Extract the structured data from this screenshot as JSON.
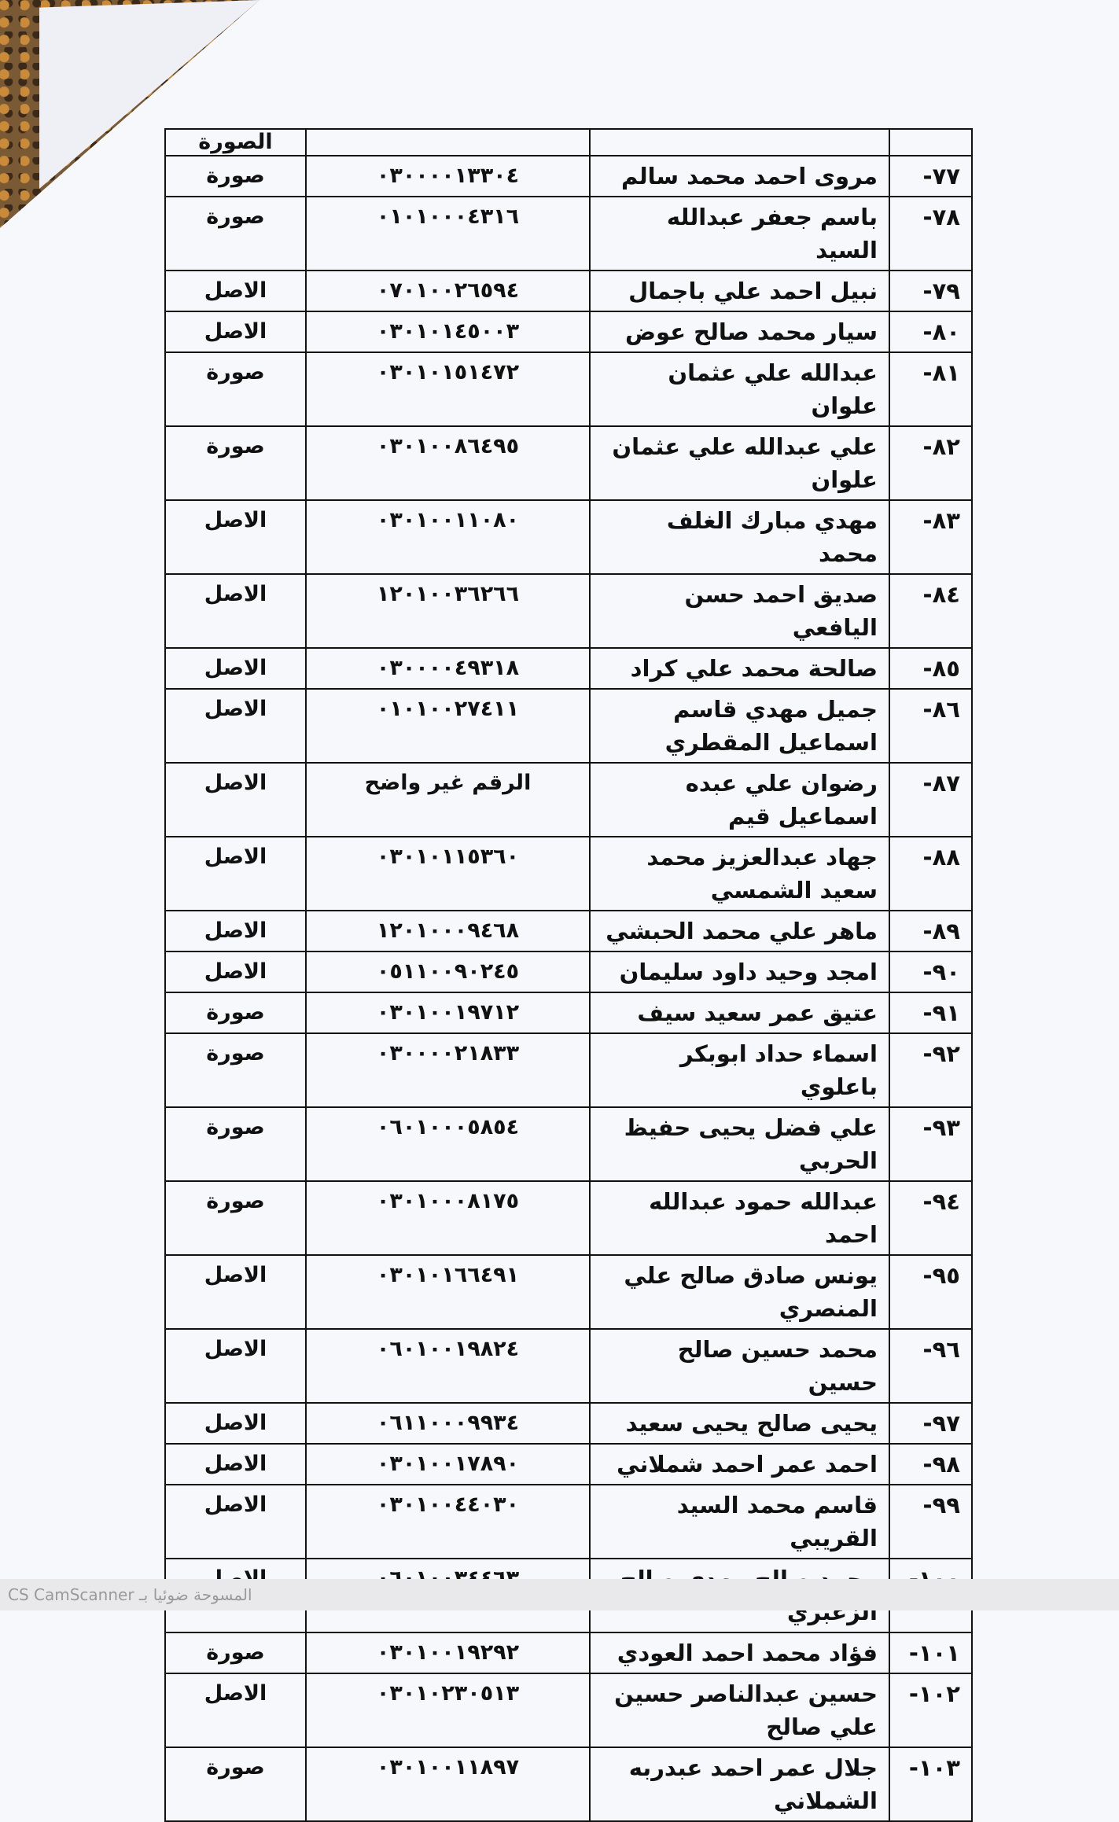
{
  "header": {
    "number": "",
    "name": "",
    "id": "",
    "status": "الصورة"
  },
  "rows": [
    {
      "n": "٧٧-",
      "name": "مروى احمد محمد سالم",
      "id": "٠٣٠٠٠٠١٣٣٠٤",
      "status": "صورة",
      "lines": 1
    },
    {
      "n": "٧٨-",
      "name": "باسم جعفر عبدالله السيد",
      "id": "٠١٠١٠٠٠٤٣١٦",
      "status": "صورة",
      "lines": 1
    },
    {
      "n": "٧٩-",
      "name": "نبيل احمد علي باجمال",
      "id": "٠٧٠١٠٠٢٦٥٩٤",
      "status": "الاصل",
      "lines": 1
    },
    {
      "n": "٨٠-",
      "name": "سيار محمد صالح عوض",
      "id": "٠٣٠١٠١٤٥٠٠٣",
      "status": "الاصل",
      "lines": 1
    },
    {
      "n": "٨١-",
      "name": "عبدالله علي عثمان علوان",
      "id": "٠٣٠١٠١٥١٤٧٢",
      "status": "صورة",
      "lines": 1
    },
    {
      "n": "٨٢-",
      "name": "علي عبدالله علي عثمان علوان",
      "id": "٠٣٠١٠٠٨٦٤٩٥",
      "status": "صورة",
      "lines": 2
    },
    {
      "n": "٨٣-",
      "name": "مهدي مبارك الغلف محمد",
      "id": "٠٣٠١٠٠١١٠٨٠",
      "status": "الاصل",
      "lines": 1
    },
    {
      "n": "٨٤-",
      "name": "صديق احمد حسن اليافعي",
      "id": "١٢٠١٠٠٣٦٢٦٦",
      "status": "الاصل",
      "lines": 1
    },
    {
      "n": "٨٥-",
      "name": "صالحة محمد علي كراد",
      "id": "٠٣٠٠٠٠٤٩٣١٨",
      "status": "الاصل",
      "lines": 1
    },
    {
      "n": "٨٦-",
      "name": "جميل مهدي قاسم اسماعيل المقطري",
      "id": "٠١٠١٠٠٢٧٤١١",
      "status": "الاصل",
      "lines": 2
    },
    {
      "n": "٨٧-",
      "name": "رضوان علي عبده اسماعيل قيم",
      "id": "الرقم غير واضح",
      "status": "الاصل",
      "lines": 2
    },
    {
      "n": "٨٨-",
      "name": "جهاد عبدالعزيز محمد سعيد الشمسي",
      "id": "٠٣٠١٠١١٥٣٦٠",
      "status": "الاصل",
      "lines": 2
    },
    {
      "n": "٨٩-",
      "name": "ماهر علي محمد الحبشي",
      "id": "١٢٠١٠٠٠٩٤٦٨",
      "status": "الاصل",
      "lines": 1
    },
    {
      "n": "٩٠-",
      "name": "امجد وحيد داود سليمان",
      "id": "٠٥١١٠٠٩٠٢٤٥",
      "status": "الاصل",
      "lines": 1
    },
    {
      "n": "٩١-",
      "name": "عتيق عمر سعيد سيف",
      "id": "٠٣٠١٠٠١٩٧١٢",
      "status": "صورة",
      "lines": 1
    },
    {
      "n": "٩٢-",
      "name": "اسماء حداد ابوبكر باعلوي",
      "id": "٠٣٠٠٠٠٢١٨٣٣",
      "status": "صورة",
      "lines": 1
    },
    {
      "n": "٩٣-",
      "name": "علي فضل يحيى حفيظ الحربي",
      "id": "٠٦٠١٠٠٠٥٨٥٤",
      "status": "صورة",
      "lines": 2
    },
    {
      "n": "٩٤-",
      "name": "عبدالله حمود عبدالله احمد",
      "id": "٠٣٠١٠٠٠٨١٧٥",
      "status": "صورة",
      "lines": 1
    },
    {
      "n": "٩٥-",
      "name": "يونس صادق صالح علي المنصري",
      "id": "٠٣٠١٠١٦٦٤٩١",
      "status": "الاصل",
      "lines": 2
    },
    {
      "n": "٩٦-",
      "name": "محمد حسين صالح حسين",
      "id": "٠٦٠١٠٠١٩٨٢٤",
      "status": "الاصل",
      "lines": 1
    },
    {
      "n": "٩٧-",
      "name": "يحيى صالح يحيى سعيد",
      "id": "٠٦١١٠٠٠٩٩٣٤",
      "status": "الاصل",
      "lines": 1
    },
    {
      "n": "٩٨-",
      "name": "احمد عمر احمد شملاني",
      "id": "٠٣٠١٠٠١٧٨٩٠",
      "status": "الاصل",
      "lines": 1
    },
    {
      "n": "٩٩-",
      "name": "قاسم محمد السيد القريبي",
      "id": "٠٣٠١٠٠٤٤٠٣٠",
      "status": "الاصل",
      "lines": 1
    },
    {
      "n": "١٠٠-",
      "name": "محمد صالح مهدي صالح الزغبري",
      "id": "٠٦٠١٠٠٣٤٤٦٣",
      "status": "الاصل",
      "lines": 2
    },
    {
      "n": "١٠١-",
      "name": "فؤاد محمد احمد العودي",
      "id": "٠٣٠١٠٠١٩٢٩٢",
      "status": "صورة",
      "lines": 1
    },
    {
      "n": "١٠٢-",
      "name": "حسين عبدالناصر حسين علي صالح",
      "id": "٠٣٠١٠٢٣٠٥١٣",
      "status": "الاصل",
      "lines": 2
    },
    {
      "n": "١٠٣-",
      "name": "جلال عمر احمد عبدربه الشملاني",
      "id": "٠٣٠١٠٠١١٨٩٧",
      "status": "صورة",
      "lines": 2
    }
  ],
  "footer": {
    "watermark": "CS CamScanner المسوحة ضوئيا بـ"
  }
}
